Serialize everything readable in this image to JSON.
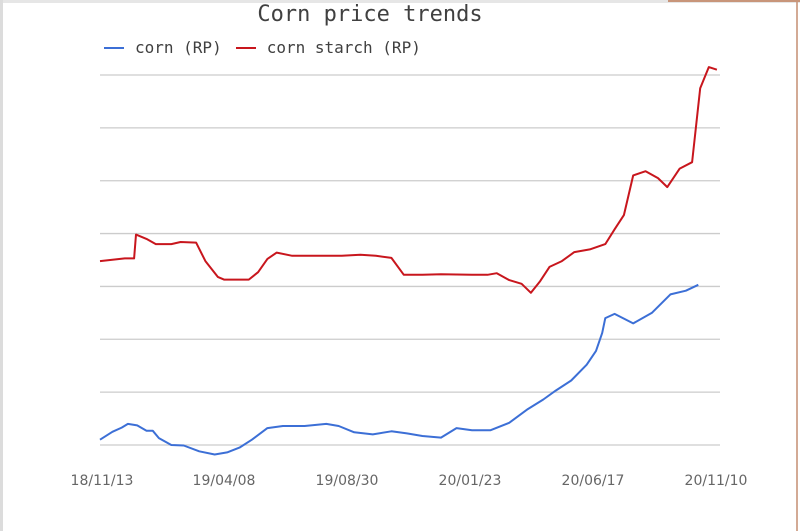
{
  "chart_data": {
    "type": "line",
    "title": "Corn price trends",
    "xlabel": "",
    "ylabel": "",
    "y_tick_labels_visible": false,
    "ylim_gridline_units": [
      0,
      7
    ],
    "grid": "horizontal",
    "legend_position": "top",
    "colors": {
      "corn": "#3c6fd6",
      "corn_starch": "#c8161d",
      "grid": "#cccccc",
      "tick_text": "#666666"
    },
    "x_tick_labels": [
      "18/11/13",
      "19/04/08",
      "19/08/30",
      "20/01/23",
      "20/06/17",
      "20/11/10"
    ],
    "legend": [
      "corn (RP)",
      "corn starch (RP)"
    ],
    "series": [
      {
        "name": "corn (RP)",
        "color": "#3c6fd6",
        "note": "values in gridline units (0 = bottom gridline, 7 = top gridline), x as fraction of date span",
        "points": [
          [
            0.0,
            0.1
          ],
          [
            0.02,
            0.25
          ],
          [
            0.035,
            0.33
          ],
          [
            0.045,
            0.4
          ],
          [
            0.06,
            0.37
          ],
          [
            0.075,
            0.27
          ],
          [
            0.085,
            0.27
          ],
          [
            0.095,
            0.13
          ],
          [
            0.115,
            0.0
          ],
          [
            0.135,
            -0.01
          ],
          [
            0.16,
            -0.12
          ],
          [
            0.185,
            -0.18
          ],
          [
            0.205,
            -0.14
          ],
          [
            0.225,
            -0.05
          ],
          [
            0.245,
            0.1
          ],
          [
            0.27,
            0.32
          ],
          [
            0.295,
            0.36
          ],
          [
            0.33,
            0.36
          ],
          [
            0.365,
            0.4
          ],
          [
            0.385,
            0.36
          ],
          [
            0.41,
            0.24
          ],
          [
            0.44,
            0.2
          ],
          [
            0.47,
            0.26
          ],
          [
            0.495,
            0.22
          ],
          [
            0.52,
            0.17
          ],
          [
            0.55,
            0.14
          ],
          [
            0.575,
            0.32
          ],
          [
            0.6,
            0.28
          ],
          [
            0.63,
            0.28
          ],
          [
            0.66,
            0.42
          ],
          [
            0.69,
            0.68
          ],
          [
            0.715,
            0.86
          ],
          [
            0.735,
            1.03
          ],
          [
            0.76,
            1.22
          ],
          [
            0.785,
            1.52
          ],
          [
            0.8,
            1.78
          ],
          [
            0.81,
            2.12
          ],
          [
            0.815,
            2.4
          ],
          [
            0.83,
            2.48
          ],
          [
            0.86,
            2.3
          ],
          [
            0.89,
            2.5
          ],
          [
            0.92,
            2.85
          ],
          [
            0.945,
            2.92
          ],
          [
            0.965,
            3.03
          ]
        ]
      },
      {
        "name": "corn starch (RP)",
        "color": "#c8161d",
        "points": [
          [
            0.0,
            3.48
          ],
          [
            0.04,
            3.53
          ],
          [
            0.055,
            3.53
          ],
          [
            0.058,
            3.98
          ],
          [
            0.075,
            3.9
          ],
          [
            0.09,
            3.8
          ],
          [
            0.115,
            3.8
          ],
          [
            0.13,
            3.84
          ],
          [
            0.155,
            3.83
          ],
          [
            0.17,
            3.48
          ],
          [
            0.19,
            3.18
          ],
          [
            0.2,
            3.13
          ],
          [
            0.24,
            3.13
          ],
          [
            0.255,
            3.27
          ],
          [
            0.27,
            3.52
          ],
          [
            0.285,
            3.64
          ],
          [
            0.31,
            3.58
          ],
          [
            0.35,
            3.58
          ],
          [
            0.39,
            3.58
          ],
          [
            0.42,
            3.6
          ],
          [
            0.445,
            3.58
          ],
          [
            0.47,
            3.54
          ],
          [
            0.49,
            3.22
          ],
          [
            0.52,
            3.22
          ],
          [
            0.55,
            3.23
          ],
          [
            0.6,
            3.22
          ],
          [
            0.625,
            3.22
          ],
          [
            0.64,
            3.25
          ],
          [
            0.66,
            3.12
          ],
          [
            0.68,
            3.05
          ],
          [
            0.695,
            2.88
          ],
          [
            0.71,
            3.1
          ],
          [
            0.725,
            3.37
          ],
          [
            0.745,
            3.48
          ],
          [
            0.765,
            3.65
          ],
          [
            0.79,
            3.7
          ],
          [
            0.815,
            3.8
          ],
          [
            0.83,
            4.08
          ],
          [
            0.845,
            4.35
          ],
          [
            0.86,
            5.1
          ],
          [
            0.88,
            5.18
          ],
          [
            0.9,
            5.05
          ],
          [
            0.915,
            4.88
          ],
          [
            0.935,
            5.23
          ],
          [
            0.955,
            5.35
          ],
          [
            0.968,
            6.75
          ],
          [
            0.982,
            7.15
          ],
          [
            0.995,
            7.1
          ]
        ]
      }
    ]
  }
}
